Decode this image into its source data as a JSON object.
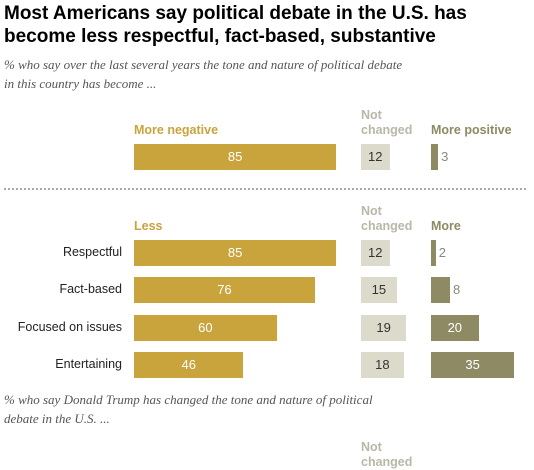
{
  "header": {
    "title_line1": "Most Americans say political debate in the U.S. has",
    "title_line2": "become less respectful, fact-based, substantive",
    "subtitle1_line1": "% who say over the last several years the tone and nature of political debate",
    "subtitle1_line2": "in this country has become ...",
    "subtitle2_line1": "% who say Donald Trump has changed the tone and nature of political",
    "subtitle2_line2": "debate in the U.S. ...",
    "cut_label_line1": "Not",
    "cut_label_line2": "changed"
  },
  "colors": {
    "gold": "#c9a33c",
    "grey": "#dcdacb",
    "olive": "#8d8a64"
  },
  "chart_data": [
    {
      "type": "bar",
      "stacked_columns": true,
      "column_headers": [
        "More negative",
        "Not changed",
        "More positive"
      ],
      "categories": [
        ""
      ],
      "series": [
        {
          "name": "More negative",
          "values": [
            85
          ]
        },
        {
          "name": "Not changed",
          "values": [
            12
          ]
        },
        {
          "name": "More positive",
          "values": [
            3
          ]
        }
      ]
    },
    {
      "type": "bar",
      "stacked_columns": true,
      "column_headers": [
        "Less",
        "Not changed",
        "More"
      ],
      "categories": [
        "Respectful",
        "Fact-based",
        "Focused on issues",
        "Entertaining"
      ],
      "series": [
        {
          "name": "Less",
          "values": [
            85,
            76,
            60,
            46
          ]
        },
        {
          "name": "Not changed",
          "values": [
            12,
            15,
            19,
            18
          ]
        },
        {
          "name": "More",
          "values": [
            2,
            8,
            20,
            35
          ]
        }
      ]
    }
  ]
}
